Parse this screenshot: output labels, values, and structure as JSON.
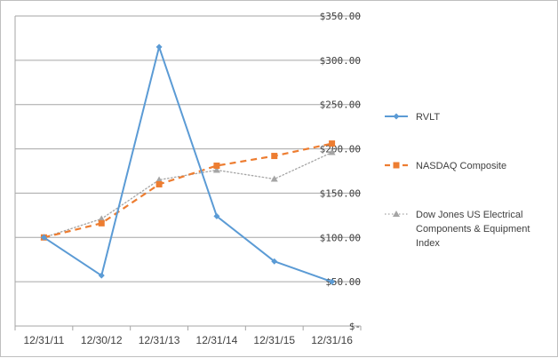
{
  "chart_data": {
    "type": "line",
    "title": "",
    "xlabel": "",
    "ylabel": "",
    "categories": [
      "12/31/11",
      "12/30/12",
      "12/31/13",
      "12/31/14",
      "12/31/15",
      "12/31/16"
    ],
    "ylim": [
      0,
      350
    ],
    "yticks": [
      0,
      50,
      100,
      150,
      200,
      250,
      300,
      350
    ],
    "ytick_labels": [
      "$-",
      "$50.00",
      "$100.00",
      "$150.00",
      "$200.00",
      "$250.00",
      "$300.00",
      "$350.00"
    ],
    "grid": true,
    "legend_position": "right",
    "series": [
      {
        "name": "RVLT",
        "legend_lines": [
          "RVLT"
        ],
        "values": [
          100,
          57,
          315,
          124,
          73,
          50
        ],
        "color": "#5b9bd5",
        "marker": "diamond",
        "dash": "solid"
      },
      {
        "name": "NASDAQ Composite",
        "legend_lines": [
          "NASDAQ Composite"
        ],
        "values": [
          100,
          116,
          160,
          181,
          192,
          206
        ],
        "color": "#ed7d31",
        "marker": "square",
        "dash": "dashed"
      },
      {
        "name": "Dow Jones US Electrical Components & Equipment Index",
        "legend_lines": [
          "Dow Jones US Electrical",
          "Components & Equipment",
          "Index"
        ],
        "values": [
          100,
          121,
          165,
          176,
          166,
          196
        ],
        "color": "#a5a5a5",
        "marker": "triangle",
        "dash": "dotted"
      }
    ]
  }
}
